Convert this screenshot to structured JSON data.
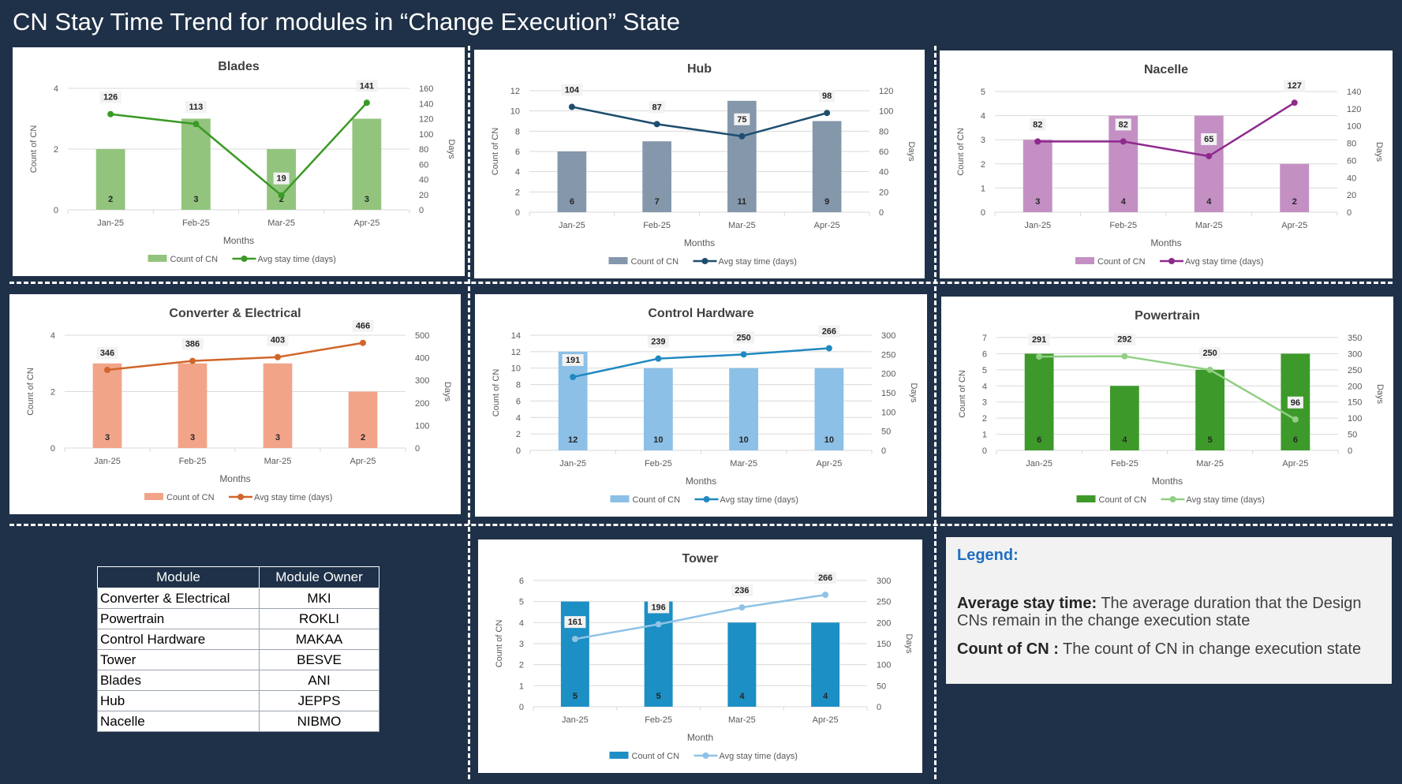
{
  "page": {
    "title": "CN Stay Time Trend for modules in “Change Execution” State"
  },
  "charts": [
    {
      "key": "blades",
      "title": "Blades",
      "colors": {
        "bar": "#92c47d",
        "line": "#3a9a26"
      },
      "xlabel": "Months",
      "ylabel_left": "Count of CN",
      "ylabel_right": "Days",
      "left_ticks": [
        0,
        2,
        4
      ],
      "right_ticks": [
        0,
        20,
        40,
        60,
        80,
        100,
        120,
        140,
        160
      ],
      "legend": [
        "Count of CN",
        "Avg stay time (days)"
      ]
    },
    {
      "key": "hub",
      "title": "Hub",
      "colors": {
        "bar": "#8497ab",
        "line": "#1d4e6e"
      },
      "xlabel": "Months",
      "ylabel_left": "Count of CN",
      "ylabel_right": "Days",
      "left_ticks": [
        0,
        2,
        4,
        6,
        8,
        10,
        12
      ],
      "right_ticks": [
        0,
        20,
        40,
        60,
        80,
        100,
        120
      ],
      "legend": [
        "Count of CN",
        "Avg stay time (days)"
      ]
    },
    {
      "key": "nacelle",
      "title": "Nacelle",
      "colors": {
        "bar": "#c490c4",
        "line": "#8e2a8e"
      },
      "xlabel": "Months",
      "ylabel_left": "Count of CN",
      "ylabel_right": "Days",
      "left_ticks": [
        0,
        1,
        2,
        3,
        4,
        5
      ],
      "right_ticks": [
        0,
        20,
        40,
        60,
        80,
        100,
        120,
        140
      ],
      "legend": [
        "Count of CN",
        "Avg stay time (days)"
      ]
    },
    {
      "key": "converter",
      "title": "Converter  & Electrical",
      "colors": {
        "bar": "#f2a489",
        "line": "#d1652a"
      },
      "xlabel": "Months",
      "ylabel_left": "Count of CN",
      "ylabel_right": "Days",
      "left_ticks": [
        0,
        2,
        4
      ],
      "right_ticks": [
        0,
        100,
        200,
        300,
        400,
        500
      ],
      "legend": [
        "Count of CN",
        "Avg stay time (days)"
      ]
    },
    {
      "key": "control",
      "title": "Control Hardware",
      "colors": {
        "bar": "#8cc0e6",
        "line": "#1f88c0"
      },
      "xlabel": "Months",
      "ylabel_left": "Count of CN",
      "ylabel_right": "Days",
      "left_ticks": [
        0,
        2,
        4,
        6,
        8,
        10,
        12,
        14
      ],
      "right_ticks": [
        0,
        50,
        100,
        150,
        200,
        250,
        300
      ],
      "legend": [
        "Count of CN",
        "Avg stay time (days)"
      ]
    },
    {
      "key": "powertrain",
      "title": "Powertrain",
      "colors": {
        "bar": "#3d9a2a",
        "line": "#92cf84"
      },
      "xlabel": "Months",
      "ylabel_left": "Count of CN",
      "ylabel_right": "Days",
      "left_ticks": [
        0,
        1,
        2,
        3,
        4,
        5,
        6,
        7
      ],
      "right_ticks": [
        0,
        50,
        100,
        150,
        200,
        250,
        300,
        350
      ],
      "legend": [
        "Count of CN",
        "Avg stay time (days)"
      ]
    },
    {
      "key": "tower",
      "title": "Tower",
      "colors": {
        "bar": "#1c8fc4",
        "line": "#8fc2e6"
      },
      "xlabel": "Month",
      "ylabel_left": "Count of CN",
      "ylabel_right": "Days",
      "left_ticks": [
        0,
        1,
        2,
        3,
        4,
        5,
        6
      ],
      "right_ticks": [
        0,
        50,
        100,
        150,
        200,
        250,
        300
      ],
      "legend": [
        "Count of CN",
        "Avg stay time (days)"
      ]
    }
  ],
  "chart_data": [
    {
      "type": "bar",
      "module": "Blades",
      "categories": [
        "Jan-25",
        "Feb-25",
        "Mar-25",
        "Apr-25"
      ],
      "series": [
        {
          "name": "Count of CN",
          "values": [
            2,
            3,
            2,
            3
          ],
          "axis": "left"
        },
        {
          "name": "Avg stay time (days)",
          "values": [
            126,
            113,
            19,
            141
          ],
          "axis": "right",
          "type": "line"
        }
      ],
      "ylim_left": [
        0,
        4
      ],
      "ylim_right": [
        0,
        160
      ]
    },
    {
      "type": "bar",
      "module": "Hub",
      "categories": [
        "Jan-25",
        "Feb-25",
        "Mar-25",
        "Apr-25"
      ],
      "series": [
        {
          "name": "Count of CN",
          "values": [
            6,
            7,
            11,
            9
          ],
          "axis": "left"
        },
        {
          "name": "Avg stay time (days)",
          "values": [
            104,
            87,
            75,
            98
          ],
          "axis": "right",
          "type": "line"
        }
      ],
      "ylim_left": [
        0,
        12
      ],
      "ylim_right": [
        0,
        120
      ]
    },
    {
      "type": "bar",
      "module": "Nacelle",
      "categories": [
        "Jan-25",
        "Feb-25",
        "Mar-25",
        "Apr-25"
      ],
      "series": [
        {
          "name": "Count of CN",
          "values": [
            3,
            4,
            4,
            2
          ],
          "axis": "left"
        },
        {
          "name": "Avg stay time (days)",
          "values": [
            82,
            82,
            65,
            127
          ],
          "axis": "right",
          "type": "line"
        }
      ],
      "ylim_left": [
        0,
        5
      ],
      "ylim_right": [
        0,
        140
      ]
    },
    {
      "type": "bar",
      "module": "Converter & Electrical",
      "categories": [
        "Jan-25",
        "Feb-25",
        "Mar-25",
        "Apr-25"
      ],
      "series": [
        {
          "name": "Count of CN",
          "values": [
            3,
            3,
            3,
            2
          ],
          "axis": "left"
        },
        {
          "name": "Avg stay time (days)",
          "values": [
            346,
            386,
            403,
            466
          ],
          "axis": "right",
          "type": "line"
        }
      ],
      "ylim_left": [
        0,
        4
      ],
      "ylim_right": [
        0,
        500
      ]
    },
    {
      "type": "bar",
      "module": "Control Hardware",
      "categories": [
        "Jan-25",
        "Feb-25",
        "Mar-25",
        "Apr-25"
      ],
      "series": [
        {
          "name": "Count of CN",
          "values": [
            12,
            10,
            10,
            10
          ],
          "axis": "left"
        },
        {
          "name": "Avg stay time (days)",
          "values": [
            191,
            239,
            250,
            266
          ],
          "axis": "right",
          "type": "line"
        }
      ],
      "ylim_left": [
        0,
        14
      ],
      "ylim_right": [
        0,
        300
      ]
    },
    {
      "type": "bar",
      "module": "Powertrain",
      "categories": [
        "Jan-25",
        "Feb-25",
        "Mar-25",
        "Apr-25"
      ],
      "series": [
        {
          "name": "Count of CN",
          "values": [
            6,
            4,
            5,
            6
          ],
          "axis": "left"
        },
        {
          "name": "Avg stay time (days)",
          "values": [
            291,
            292,
            250,
            96
          ],
          "axis": "right",
          "type": "line"
        }
      ],
      "ylim_left": [
        0,
        7
      ],
      "ylim_right": [
        0,
        350
      ]
    },
    {
      "type": "bar",
      "module": "Tower",
      "categories": [
        "Jan-25",
        "Feb-25",
        "Mar-25",
        "Apr-25"
      ],
      "series": [
        {
          "name": "Count of CN",
          "values": [
            5,
            5,
            4,
            4
          ],
          "axis": "left"
        },
        {
          "name": "Avg stay time (days)",
          "values": [
            161,
            196,
            236,
            266
          ],
          "axis": "right",
          "type": "line"
        }
      ],
      "ylim_left": [
        0,
        6
      ],
      "ylim_right": [
        0,
        300
      ]
    }
  ],
  "owner_table": {
    "headers": [
      "Module",
      "Module Owner"
    ],
    "rows": [
      [
        "Converter & Electrical",
        "MKI"
      ],
      [
        "Powertrain",
        "ROKLI"
      ],
      [
        "Control Hardware",
        "MAKAA"
      ],
      [
        "Tower",
        "BESVE"
      ],
      [
        "Blades",
        "ANI"
      ],
      [
        "Hub",
        "JEPPS"
      ],
      [
        "Nacelle",
        "NIBMO"
      ]
    ]
  },
  "legend_box": {
    "heading": "Legend:",
    "avg_term": "Average stay time:",
    "avg_desc": " The average duration that the Design CNs remain in the change execution state",
    "count_term": "Count of CN :",
    "count_desc": " The count of CN in change execution state"
  }
}
